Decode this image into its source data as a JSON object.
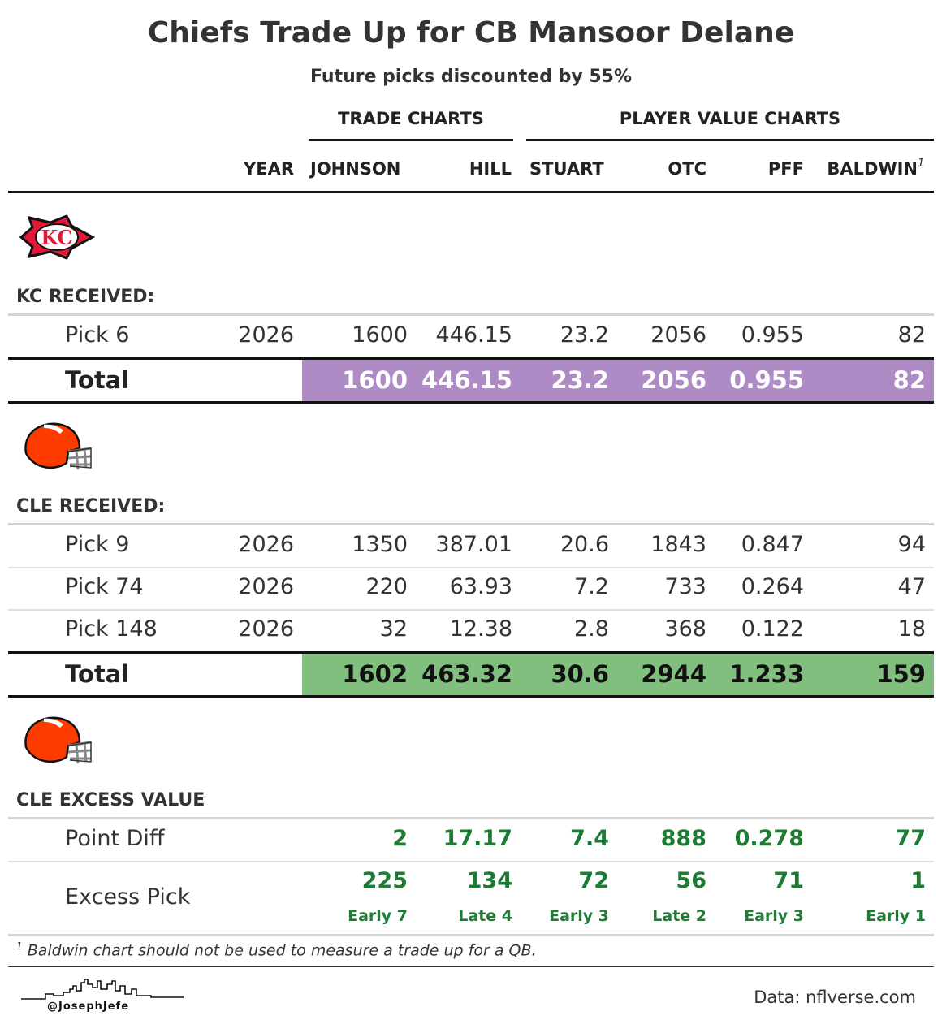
{
  "title": "Chiefs Trade Up for CB Mansoor Delane",
  "subtitle": "Future picks discounted by 55%",
  "spanners": {
    "trade": "TRADE CHARTS",
    "player": "PLAYER VALUE CHARTS"
  },
  "columns": {
    "year": "YEAR",
    "johnson": "JOHNSON",
    "hill": "HILL",
    "stuart": "STUART",
    "otc": "OTC",
    "pff": "PFF",
    "baldwin": "BALDWIN",
    "baldwin_note": "1"
  },
  "colors": {
    "kc_total": "#ae8bc5",
    "cle_total": "#80bf7e",
    "excess_green": "#1e7b34"
  },
  "kc": {
    "logo": "chiefs-arrowhead-logo",
    "section": "KC RECEIVED:",
    "rows": [
      {
        "label": "Pick 6",
        "year": "2026",
        "johnson": "1600",
        "hill": "446.15",
        "stuart": "23.2",
        "otc": "2056",
        "pff": "0.955",
        "baldwin": "82"
      }
    ],
    "total": {
      "label": "Total",
      "johnson": "1600",
      "hill": "446.15",
      "stuart": "23.2",
      "otc": "2056",
      "pff": "0.955",
      "baldwin": "82"
    }
  },
  "cle": {
    "logo": "browns-helmet-logo",
    "section": "CLE RECEIVED:",
    "rows": [
      {
        "label": "Pick 9",
        "year": "2026",
        "johnson": "1350",
        "hill": "387.01",
        "stuart": "20.6",
        "otc": "1843",
        "pff": "0.847",
        "baldwin": "94"
      },
      {
        "label": "Pick 74",
        "year": "2026",
        "johnson": "220",
        "hill": "63.93",
        "stuart": "7.2",
        "otc": "733",
        "pff": "0.264",
        "baldwin": "47"
      },
      {
        "label": "Pick 148",
        "year": "2026",
        "johnson": "32",
        "hill": "12.38",
        "stuart": "2.8",
        "otc": "368",
        "pff": "0.122",
        "baldwin": "18"
      }
    ],
    "total": {
      "label": "Total",
      "johnson": "1602",
      "hill": "463.32",
      "stuart": "30.6",
      "otc": "2944",
      "pff": "1.233",
      "baldwin": "159"
    }
  },
  "excess": {
    "logo": "browns-helmet-logo",
    "section": "CLE EXCESS VALUE",
    "point_diff": {
      "label": "Point Diff",
      "johnson": "2",
      "hill": "17.17",
      "stuart": "7.4",
      "otc": "888",
      "pff": "0.278",
      "baldwin": "77"
    },
    "excess_pick": {
      "label": "Excess Pick",
      "johnson": "225",
      "hill": "134",
      "stuart": "72",
      "otc": "56",
      "pff": "71",
      "baldwin": "1",
      "johnson_round": "Early 7",
      "hill_round": "Late 4",
      "stuart_round": "Early 3",
      "otc_round": "Late 2",
      "pff_round": "Early 3",
      "baldwin_round": "Early 1"
    }
  },
  "footnote": {
    "mark": "1",
    "text": "Baldwin chart should not be used to measure a trade up for a QB."
  },
  "credit": {
    "handle": "@JosephJefe",
    "source": "Data: nflverse.com"
  }
}
